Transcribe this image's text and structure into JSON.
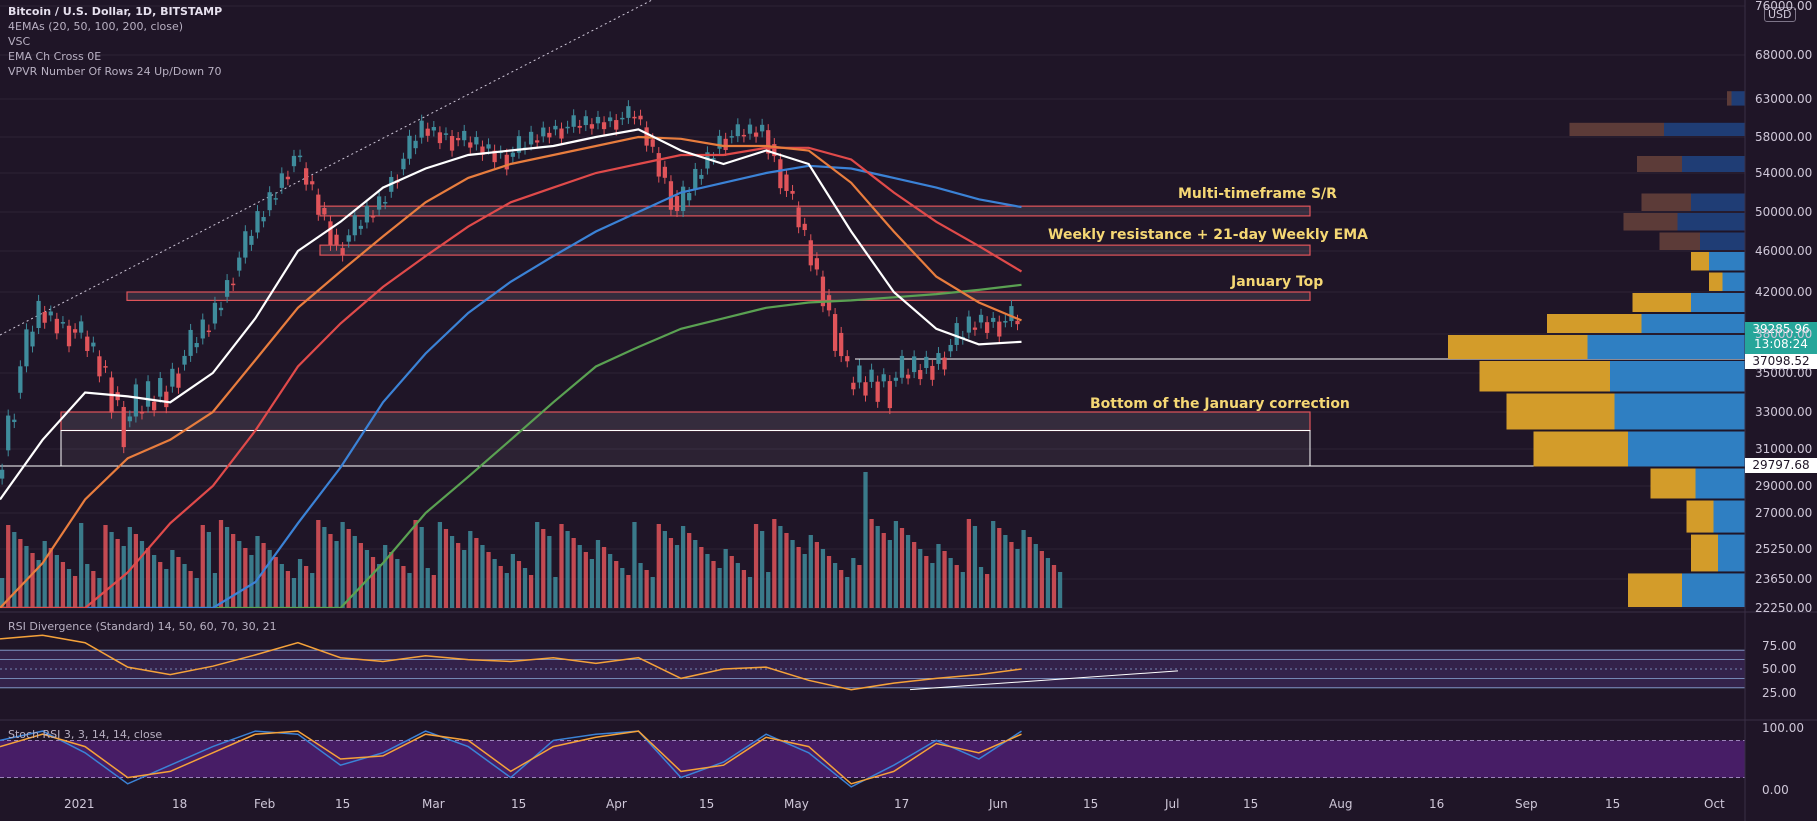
{
  "header": {
    "title": "Bitcoin / U.S. Dollar, 1D, BITSTAMP",
    "indicators": [
      "4EMAs (20, 50, 100, 200, close)",
      "VSC",
      "EMA Ch Cross 0E",
      "VPVR Number Of Rows 24 Up/Down 70"
    ]
  },
  "currency_badge": "USD",
  "colors": {
    "background": "#1f1527",
    "up_candle": "#3f8c9c",
    "down_candle": "#e0545a",
    "ema20": "#ffffff",
    "ema50": "#e87d3e",
    "ema100": "#e04a4a",
    "ema200_blue": "#3b82d6",
    "ema_green": "#5aa152",
    "zone_fill": "#ffffff",
    "rsi_line": "#f5a23a",
    "stoch_k": "#3b82d6",
    "stoch_d": "#f5a23a",
    "label": "#f5d774"
  },
  "zones": [
    {
      "label": "Multi-timeframe S/R",
      "low": 49600,
      "high": 50600
    },
    {
      "label": "Weekly resistance + 21-day Weekly EMA",
      "low": 45600,
      "high": 46600
    },
    {
      "label": "January Top",
      "low": 41200,
      "high": 42000
    },
    {
      "label": "Bottom of the January correction",
      "low": 32000,
      "high": 33000
    }
  ],
  "price_tags": {
    "current": {
      "price": "39285.96",
      "countdown": "13:08:24"
    },
    "level_1": "37098.52",
    "level_2": "29797.68"
  },
  "chart_data": [
    {
      "type": "candlestick",
      "title": "Bitcoin / U.S. Dollar, 1D, BITSTAMP",
      "xlabel": "",
      "ylabel": "",
      "ylim": [
        22250,
        76000
      ],
      "y_ticks": [
        "76000.00",
        "68000.00",
        "63000.00",
        "58000.00",
        "54000.00",
        "50000.00",
        "46000.00",
        "42000.00",
        "38000.00",
        "35000.00",
        "33000.00",
        "31000.00",
        "29000.00",
        "27000.00",
        "25250.00",
        "23650.00",
        "22250.00"
      ],
      "x_ticks": [
        "2021",
        "18",
        "Feb",
        "15",
        "Mar",
        "15",
        "Apr",
        "15",
        "May",
        "17",
        "Jun",
        "15",
        "Jul",
        "15",
        "Aug",
        "16",
        "Sep",
        "15",
        "Oct"
      ],
      "weekly_close": [
        {
          "date": "2020-12-27",
          "close": 29400
        },
        {
          "date": "2021-01-03",
          "close": 40100
        },
        {
          "date": "2021-01-10",
          "close": 37800
        },
        {
          "date": "2021-01-17",
          "close": 32500
        },
        {
          "date": "2021-01-24",
          "close": 34300
        },
        {
          "date": "2021-01-31",
          "close": 39000
        },
        {
          "date": "2021-02-07",
          "close": 47900
        },
        {
          "date": "2021-02-14",
          "close": 55900
        },
        {
          "date": "2021-02-21",
          "close": 46300
        },
        {
          "date": "2021-02-28",
          "close": 50900
        },
        {
          "date": "2021-03-07",
          "close": 59100
        },
        {
          "date": "2021-03-14",
          "close": 57400
        },
        {
          "date": "2021-03-21",
          "close": 55800
        },
        {
          "date": "2021-03-28",
          "close": 59000
        },
        {
          "date": "2021-04-04",
          "close": 59800
        },
        {
          "date": "2021-04-11",
          "close": 60800
        },
        {
          "date": "2021-04-18",
          "close": 50100
        },
        {
          "date": "2021-04-25",
          "close": 57800
        },
        {
          "date": "2021-05-02",
          "close": 58900
        },
        {
          "date": "2021-05-09",
          "close": 47100
        },
        {
          "date": "2021-05-16",
          "close": 34500
        },
        {
          "date": "2021-05-23",
          "close": 34600
        },
        {
          "date": "2021-05-30",
          "close": 35700
        },
        {
          "date": "2021-06-06",
          "close": 39100
        },
        {
          "date": "2021-06-13",
          "close": 39286
        }
      ],
      "ema20_weekly": [
        28000,
        31500,
        34000,
        33800,
        33500,
        35000,
        39500,
        46000,
        49000,
        52500,
        54500,
        56000,
        56500,
        57000,
        58000,
        59000,
        56500,
        55000,
        56500,
        55000,
        48000,
        42000,
        38500,
        37200,
        37400
      ],
      "ema50_weekly": [
        21000,
        24500,
        28000,
        30500,
        31500,
        33000,
        36000,
        40500,
        44000,
        47500,
        51000,
        53500,
        55000,
        56000,
        57000,
        58000,
        57800,
        57000,
        57000,
        56500,
        53000,
        48000,
        43500,
        41000,
        39300
      ],
      "ema100_weekly": [
        18000,
        19500,
        21500,
        24000,
        26500,
        29000,
        32000,
        35500,
        39000,
        42500,
        45500,
        48500,
        51000,
        52500,
        54000,
        55000,
        56000,
        56000,
        56800,
        56800,
        55500,
        52000,
        49000,
        46500,
        44000
      ],
      "ema200_weekly": [
        13000,
        14000,
        15000,
        16500,
        18500,
        20500,
        23500,
        26500,
        30000,
        33500,
        36500,
        40000,
        43000,
        45500,
        48000,
        50000,
        52000,
        53000,
        54000,
        54800,
        54500,
        53500,
        52500,
        51300,
        50500
      ],
      "ema_green_weekly": [
        8000,
        9000,
        10500,
        12000,
        13500,
        15000,
        17000,
        19500,
        22000,
        24500,
        27000,
        29500,
        31500,
        33500,
        35500,
        37000,
        38500,
        39500,
        40500,
        41000,
        41200,
        41500,
        41800,
        42200,
        42700
      ],
      "volume_profile": [
        {
          "price_low": 62000,
          "price_high": 64000,
          "up": 15,
          "down": 5
        },
        {
          "price_low": 58000,
          "price_high": 60000,
          "up": 90,
          "down": 105
        },
        {
          "price_low": 54000,
          "price_high": 56000,
          "up": 70,
          "down": 50
        },
        {
          "price_low": 50000,
          "price_high": 52000,
          "up": 60,
          "down": 55
        },
        {
          "price_low": 48000,
          "price_high": 50000,
          "up": 75,
          "down": 60
        },
        {
          "price_low": 46000,
          "price_high": 48000,
          "up": 50,
          "down": 45
        },
        {
          "price_low": 44000,
          "price_high": 46000,
          "up": 40,
          "down": 20
        },
        {
          "price_low": 42000,
          "price_high": 44000,
          "up": 25,
          "down": 15
        },
        {
          "price_low": 40000,
          "price_high": 42000,
          "up": 60,
          "down": 65
        },
        {
          "price_low": 38000,
          "price_high": 40000,
          "up": 115,
          "down": 105
        },
        {
          "price_low": 36000,
          "price_high": 38000,
          "up": 175,
          "down": 155
        },
        {
          "price_low": 34000,
          "price_high": 36000,
          "up": 150,
          "down": 145
        },
        {
          "price_low": 32000,
          "price_high": 34000,
          "up": 145,
          "down": 120
        },
        {
          "price_low": 30000,
          "price_high": 32000,
          "up": 130,
          "down": 105
        },
        {
          "price_low": 28000,
          "price_high": 30000,
          "up": 55,
          "down": 50
        },
        {
          "price_low": 26000,
          "price_high": 28000,
          "up": 35,
          "down": 30
        },
        {
          "price_low": 24000,
          "price_high": 26000,
          "up": 30,
          "down": 30
        },
        {
          "price_low": 22250,
          "price_high": 24000,
          "up": 70,
          "down": 60
        }
      ],
      "grid": true
    },
    {
      "type": "line",
      "title": "RSI Divergence (Standard) 14, 50, 60, 70, 30, 21",
      "ylim": [
        0,
        100
      ],
      "y_ticks": [
        "75.00",
        "50.00",
        "25.00"
      ],
      "weekly_rsi": [
        82,
        86,
        78,
        52,
        44,
        53,
        65,
        78,
        62,
        58,
        64,
        60,
        58,
        62,
        56,
        62,
        40,
        50,
        52,
        38,
        28,
        35,
        40,
        44,
        50
      ],
      "levels": [
        70,
        60,
        50,
        40,
        30
      ]
    },
    {
      "type": "line",
      "title": "Stoch RSI 3, 3, 14, 14, close",
      "ylim": [
        0,
        100
      ],
      "y_ticks": [
        "100.00",
        "0.00"
      ],
      "weekly_k": [
        80,
        95,
        60,
        10,
        40,
        70,
        95,
        90,
        40,
        60,
        95,
        70,
        20,
        80,
        90,
        95,
        20,
        45,
        90,
        60,
        5,
        40,
        80,
        50,
        95
      ],
      "weekly_d": [
        70,
        90,
        70,
        20,
        30,
        60,
        90,
        95,
        50,
        55,
        90,
        80,
        30,
        70,
        85,
        95,
        30,
        40,
        85,
        70,
        10,
        30,
        75,
        60,
        90
      ],
      "levels": [
        80,
        20
      ]
    }
  ]
}
